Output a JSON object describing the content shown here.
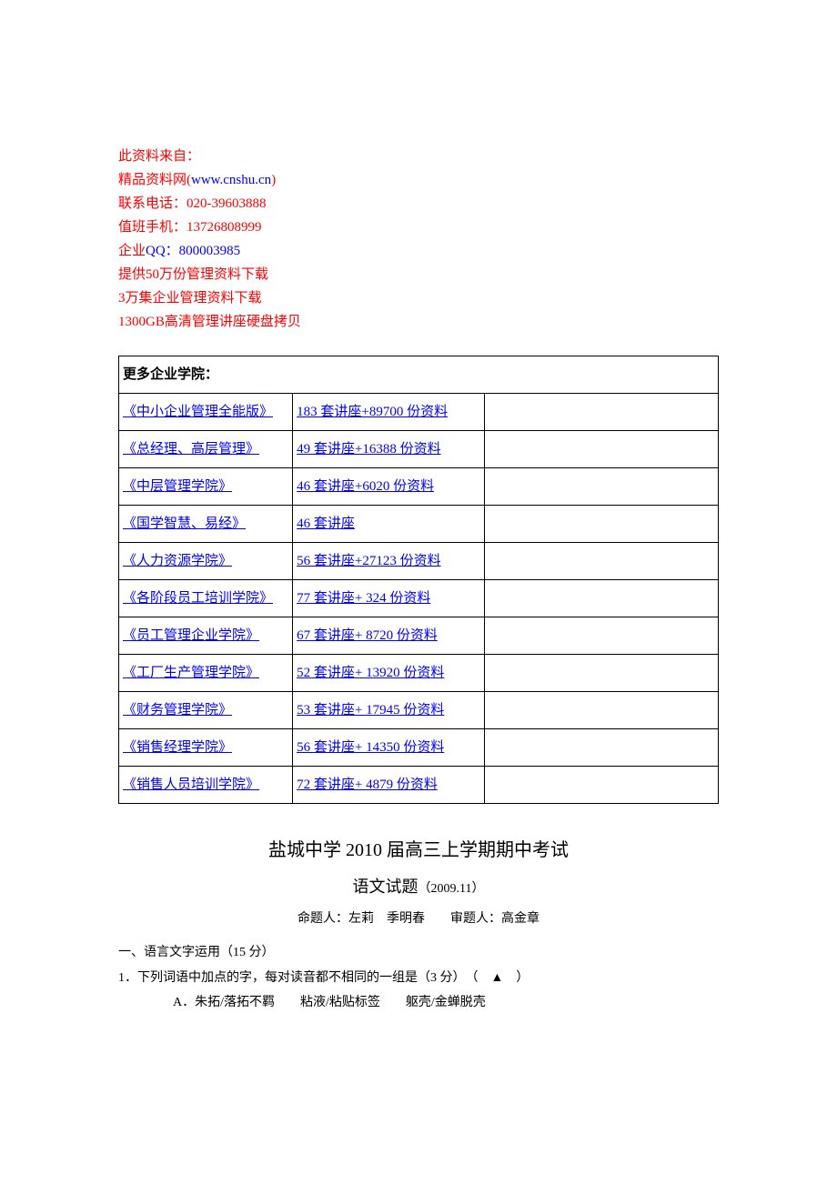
{
  "header": {
    "line1": "此资料来自：",
    "line2_prefix": "精品资料网(",
    "line2_link": "www.cnshu.cn",
    "line2_suffix": ")",
    "line3": "联系电话：020-39603888",
    "line4": "值班手机：13726808999",
    "line5_prefix": "企业",
    "line5_link": "QQ：800003985",
    "line6": "提供50万份管理资料下载",
    "line7": "3万集企业管理资料下载",
    "line8": "1300GB高清管理讲座硬盘拷贝"
  },
  "table_header": "更多企业学院：",
  "courses": [
    {
      "name": "《中小企业管理全能版》",
      "desc": "183 套讲座+89700 份资料"
    },
    {
      "name": "《总经理、高层管理》",
      "desc": "49 套讲座+16388 份资料"
    },
    {
      "name": "《中层管理学院》",
      "desc": "46 套讲座+6020 份资料"
    },
    {
      "name": "《国学智慧、易经》",
      "desc": "46 套讲座"
    },
    {
      "name": "《人力资源学院》",
      "desc": "56 套讲座+27123 份资料"
    },
    {
      "name": "《各阶段员工培训学院》",
      "desc": "77 套讲座+ 324 份资料"
    },
    {
      "name": "《员工管理企业学院》",
      "desc": "67 套讲座+ 8720 份资料"
    },
    {
      "name": "《工厂生产管理学院》",
      "desc": "52 套讲座+ 13920 份资料"
    },
    {
      "name": "《财务管理学院》",
      "desc": "53 套讲座+ 17945 份资料"
    },
    {
      "name": "《销售经理学院》",
      "desc": "56 套讲座+ 14350 份资料"
    },
    {
      "name": "《销售人员培训学院》",
      "desc": "72 套讲座+ 4879 份资料"
    }
  ],
  "exam": {
    "title": "盐城中学 2010 届高三上学期期中考试",
    "subtitle": "语文试题",
    "date": "（2009.11）",
    "authors": "命题人：左莉　季明春　　审题人：高金章",
    "section": "一、语言文字运用（15 分）",
    "question1": "1．下列词语中加点的字，每对读音都不相同的一组是（3 分）　（　▲　）",
    "option_a": "A．朱拓/落拓不羁　　粘液/粘贴标签　　躯壳/金蝉脱壳"
  },
  "colors": {
    "red": "#ff0000",
    "blue": "#0000ff",
    "black": "#000000",
    "white": "#ffffff"
  }
}
